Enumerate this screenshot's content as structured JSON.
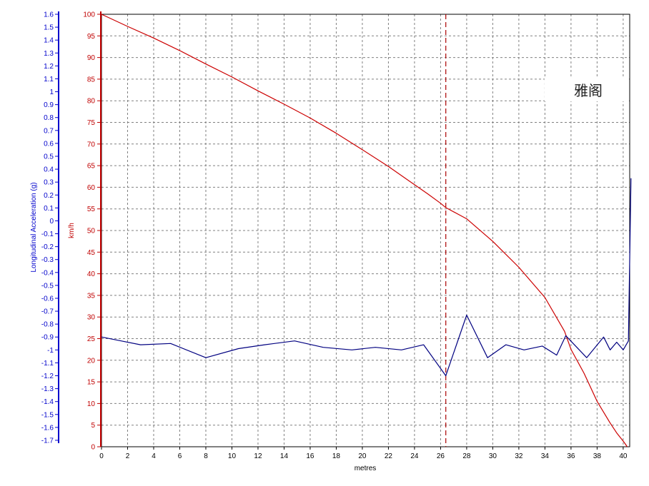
{
  "chart_data": {
    "type": "line",
    "xlabel": "metres",
    "xlim": [
      0,
      40.5
    ],
    "xticks": [
      0,
      2,
      4,
      6,
      8,
      10,
      12,
      14,
      16,
      18,
      20,
      22,
      24,
      26,
      28,
      30,
      32,
      34,
      36,
      38,
      40
    ],
    "grid": true,
    "marker_x": 26.4,
    "watermark": "雅阁",
    "axes": {
      "speed": {
        "label": "km/h",
        "color": "#c00000",
        "ylim": [
          0,
          100
        ],
        "ticks": [
          0,
          5,
          10,
          15,
          20,
          25,
          30,
          35,
          40,
          45,
          50,
          55,
          60,
          65,
          70,
          75,
          80,
          85,
          90,
          95,
          100
        ]
      },
      "accel": {
        "label": "Longitudinal Acceleration (g)",
        "color": "#0000cc",
        "ylim": [
          -1.75,
          1.6
        ],
        "ticks": [
          1.6,
          1.5,
          1.4,
          1.3,
          1.2,
          1.1,
          1,
          0.9,
          0.8,
          0.7,
          0.6,
          0.5,
          0.4,
          0.3,
          0.2,
          0.1,
          0,
          -0.1,
          -0.2,
          -0.3,
          -0.4,
          -0.5,
          -0.6,
          -0.7,
          -0.8,
          -0.9,
          -1,
          -1.1,
          -1.2,
          -1.3,
          -1.4,
          -1.5,
          -1.6,
          -1.7
        ]
      }
    },
    "series": [
      {
        "axis": "speed",
        "color": "#cc0000",
        "x": [
          0,
          2,
          4,
          6,
          8,
          10,
          12,
          14,
          16,
          18,
          20,
          22,
          24,
          25,
          26,
          26.4,
          28,
          30,
          32,
          34,
          35.5,
          36,
          37,
          38,
          39,
          39.5,
          40,
          40.2,
          40.3
        ],
        "y": [
          100,
          97.2,
          94.5,
          91.6,
          88.5,
          85.5,
          82.3,
          79.2,
          76,
          72.5,
          68.7,
          64.8,
          60.6,
          58.5,
          56.3,
          55.3,
          52.7,
          47.5,
          41.5,
          34.5,
          26.7,
          22.5,
          17,
          10.5,
          5.5,
          3.2,
          1.3,
          0.5,
          0
        ]
      },
      {
        "axis": "accel",
        "color": "#000080",
        "x": [
          0,
          1.5,
          3,
          5.3,
          8,
          10.5,
          12.5,
          14.8,
          17,
          19.2,
          21,
          23,
          24.7,
          26.4,
          28,
          29.6,
          31,
          32.4,
          33.8,
          34.9,
          35.6,
          37.2,
          38.5,
          39,
          39.5,
          40,
          40.4,
          40.6
        ],
        "y": [
          -0.9,
          -0.93,
          -0.96,
          -0.95,
          -1.06,
          -0.99,
          -0.96,
          -0.93,
          -0.98,
          -1.0,
          -0.98,
          -1.0,
          -0.96,
          -1.2,
          -0.73,
          -1.06,
          -0.96,
          -1.0,
          -0.97,
          -1.04,
          -0.89,
          -1.06,
          -0.9,
          -1.0,
          -0.94,
          -1.0,
          -0.93,
          0.33
        ]
      }
    ]
  }
}
